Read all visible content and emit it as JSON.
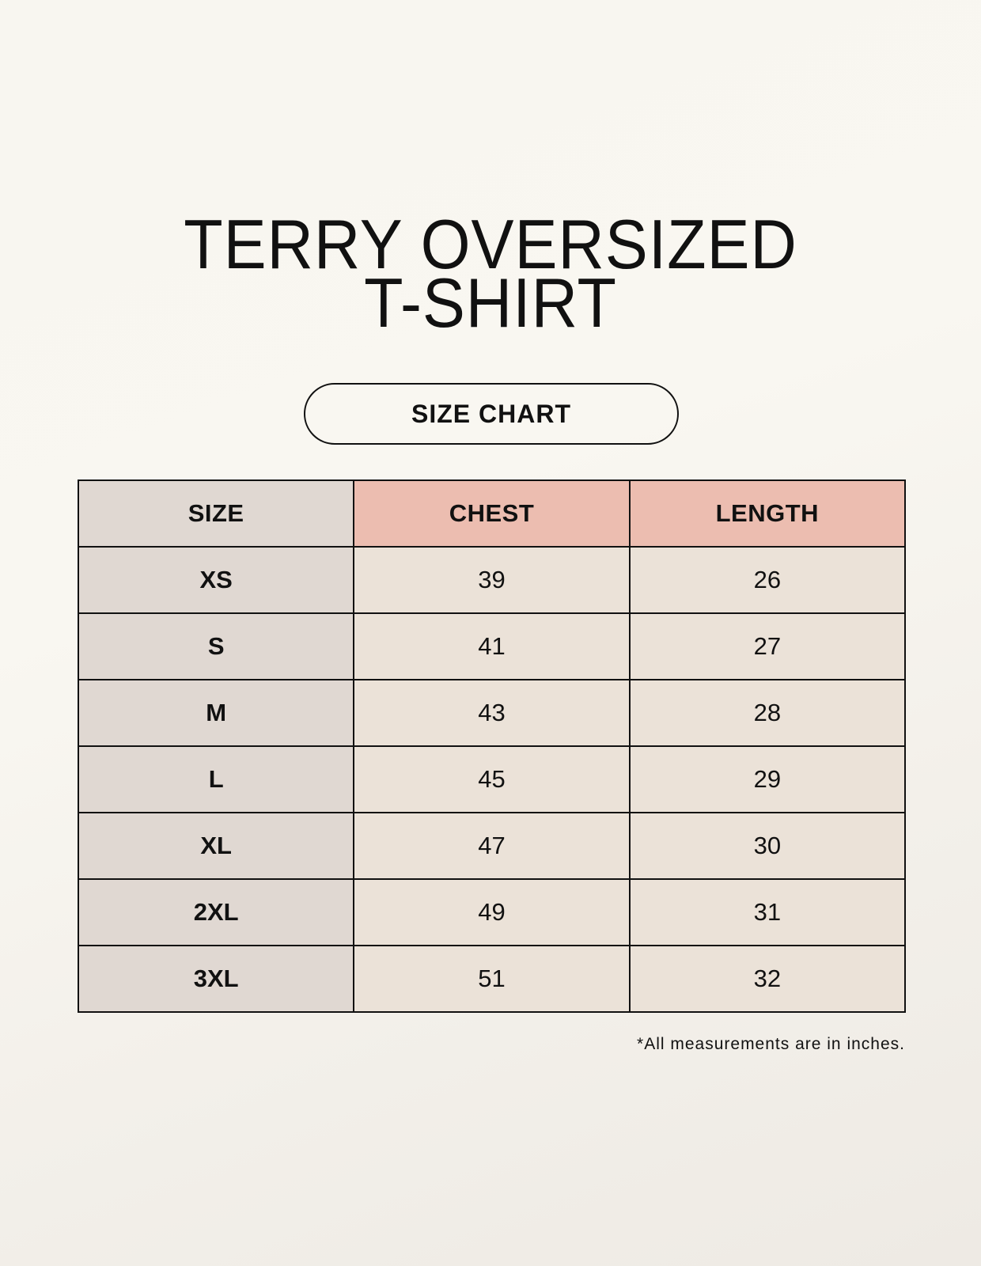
{
  "title": {
    "line1": "TERRY OVERSIZED",
    "line2": "T-SHIRT"
  },
  "badge": "SIZE CHART",
  "table": {
    "headers": [
      "SIZE",
      "CHEST",
      "LENGTH"
    ],
    "rows": [
      [
        "XS",
        "39",
        "26"
      ],
      [
        "S",
        "41",
        "27"
      ],
      [
        "M",
        "43",
        "28"
      ],
      [
        "L",
        "45",
        "29"
      ],
      [
        "XL",
        "47",
        "30"
      ],
      [
        "2XL",
        "49",
        "31"
      ],
      [
        "3XL",
        "51",
        "32"
      ]
    ]
  },
  "footnote": "*All measurements are in inches.",
  "colors": {
    "size_column": "#e0d8d2",
    "header_accent": "#ecbdb0",
    "cell": "#ebe2d8"
  }
}
